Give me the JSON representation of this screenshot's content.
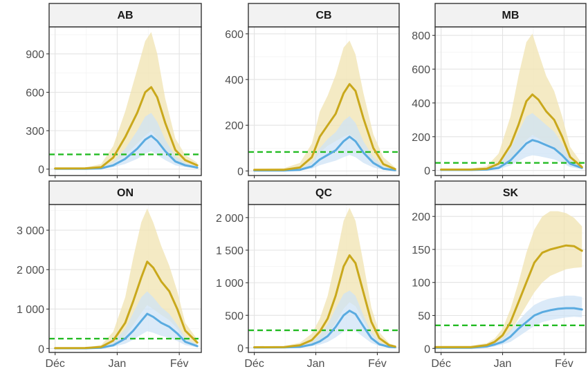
{
  "chart_data": {
    "type": "line",
    "x_ticks": [
      {
        "label": "Déc",
        "x": 5
      },
      {
        "label": "Jan",
        "x": 36
      },
      {
        "label": "Fév",
        "x": 67
      }
    ],
    "x_range": [
      2,
      78
    ],
    "grid": true,
    "legend": "none",
    "colors": {
      "upper_line": "#c9a81c",
      "upper_band": "#f0e3b0",
      "lower_line": "#5aabe0",
      "lower_band": "#cfe3f5",
      "threshold": "#22bb22"
    },
    "panels": [
      {
        "title": "AB",
        "ylim": [
          -50,
          1110
        ],
        "y_ticks": [
          {
            "label": "0",
            "v": 0
          },
          {
            "label": "300",
            "v": 300
          },
          {
            "label": "600",
            "v": 600
          },
          {
            "label": "900",
            "v": 900
          }
        ],
        "threshold": 115,
        "upper": {
          "x": [
            5,
            20,
            28,
            34,
            40,
            46,
            50,
            53,
            56,
            60,
            65,
            70,
            76
          ],
          "y": [
            5,
            6,
            15,
            90,
            250,
            440,
            600,
            640,
            560,
            360,
            150,
            70,
            30
          ]
        },
        "upper_band": {
          "x": [
            5,
            20,
            28,
            34,
            40,
            46,
            50,
            53,
            56,
            60,
            65,
            70,
            76
          ],
          "lo": [
            3,
            4,
            8,
            45,
            110,
            200,
            260,
            300,
            240,
            140,
            60,
            30,
            10
          ],
          "hi": [
            10,
            12,
            40,
            180,
            450,
            780,
            1000,
            1070,
            900,
            550,
            240,
            110,
            50
          ]
        },
        "lower": {
          "x": [
            5,
            20,
            28,
            34,
            40,
            46,
            50,
            53,
            56,
            60,
            65,
            70,
            76
          ],
          "y": [
            3,
            3,
            6,
            30,
            80,
            160,
            230,
            260,
            220,
            140,
            60,
            30,
            12
          ]
        },
        "lower_band": {
          "x": [
            5,
            20,
            28,
            34,
            40,
            46,
            50,
            53,
            56,
            60,
            65,
            70,
            76
          ],
          "lo": [
            1,
            1,
            3,
            15,
            40,
            80,
            120,
            140,
            110,
            70,
            30,
            15,
            5
          ],
          "hi": [
            6,
            6,
            12,
            60,
            160,
            300,
            410,
            440,
            370,
            230,
            100,
            50,
            20
          ]
        }
      },
      {
        "title": "CB",
        "ylim": [
          -20,
          630
        ],
        "y_ticks": [
          {
            "label": "0",
            "v": 0
          },
          {
            "label": "200",
            "v": 200
          },
          {
            "label": "400",
            "v": 400
          },
          {
            "label": "600",
            "v": 600
          }
        ],
        "threshold": 83,
        "upper": {
          "x": [
            5,
            20,
            28,
            34,
            38,
            42,
            46,
            50,
            53,
            56,
            60,
            65,
            70,
            76
          ],
          "y": [
            5,
            5,
            15,
            60,
            150,
            200,
            250,
            340,
            380,
            350,
            230,
            100,
            30,
            8
          ]
        },
        "upper_band": {
          "x": [
            5,
            20,
            28,
            34,
            38,
            42,
            46,
            50,
            53,
            56,
            60,
            65,
            70,
            76
          ],
          "lo": [
            2,
            2,
            8,
            30,
            80,
            110,
            130,
            150,
            160,
            140,
            90,
            40,
            15,
            4
          ],
          "hi": [
            10,
            12,
            35,
            120,
            260,
            330,
            420,
            540,
            570,
            510,
            340,
            160,
            60,
            15
          ]
        },
        "lower": {
          "x": [
            5,
            20,
            28,
            34,
            38,
            42,
            46,
            50,
            53,
            56,
            60,
            65,
            70,
            76
          ],
          "y": [
            2,
            2,
            5,
            20,
            50,
            70,
            90,
            130,
            150,
            130,
            80,
            35,
            10,
            3
          ]
        },
        "lower_band": {
          "x": [
            5,
            20,
            28,
            34,
            38,
            42,
            46,
            50,
            53,
            56,
            60,
            65,
            70,
            76
          ],
          "lo": [
            1,
            1,
            2,
            10,
            25,
            35,
            45,
            60,
            70,
            60,
            35,
            15,
            5,
            1
          ],
          "hi": [
            5,
            5,
            10,
            40,
            100,
            140,
            170,
            220,
            240,
            210,
            130,
            60,
            20,
            6
          ]
        }
      },
      {
        "title": "MB",
        "ylim": [
          -30,
          850
        ],
        "y_ticks": [
          {
            "label": "0",
            "v": 0
          },
          {
            "label": "200",
            "v": 200
          },
          {
            "label": "400",
            "v": 400
          },
          {
            "label": "600",
            "v": 600
          },
          {
            "label": "800",
            "v": 800
          }
        ],
        "threshold": 45,
        "upper": {
          "x": [
            5,
            20,
            28,
            34,
            40,
            44,
            48,
            51,
            54,
            58,
            62,
            66,
            70,
            76
          ],
          "y": [
            5,
            5,
            10,
            40,
            150,
            270,
            410,
            450,
            420,
            350,
            300,
            200,
            80,
            20
          ]
        },
        "upper_band": {
          "x": [
            5,
            20,
            28,
            34,
            40,
            44,
            48,
            51,
            54,
            58,
            62,
            66,
            70,
            76
          ],
          "lo": [
            2,
            2,
            5,
            20,
            70,
            120,
            180,
            210,
            190,
            160,
            140,
            90,
            40,
            10
          ],
          "hi": [
            10,
            12,
            25,
            100,
            320,
            560,
            760,
            810,
            700,
            560,
            470,
            320,
            140,
            40
          ]
        },
        "lower": {
          "x": [
            5,
            20,
            28,
            34,
            40,
            44,
            48,
            51,
            54,
            58,
            62,
            66,
            70,
            76
          ],
          "y": [
            3,
            3,
            5,
            15,
            60,
            110,
            160,
            180,
            170,
            150,
            130,
            90,
            40,
            15
          ]
        },
        "lower_band": {
          "x": [
            5,
            20,
            28,
            34,
            40,
            44,
            48,
            51,
            54,
            58,
            62,
            66,
            70,
            76
          ],
          "lo": [
            1,
            1,
            2,
            7,
            30,
            55,
            80,
            90,
            85,
            75,
            65,
            45,
            20,
            7
          ],
          "hi": [
            6,
            6,
            12,
            35,
            130,
            230,
            320,
            340,
            310,
            270,
            230,
            160,
            70,
            25
          ]
        }
      },
      {
        "title": "ON",
        "ylim": [
          -100,
          3650
        ],
        "y_ticks": [
          {
            "label": "0",
            "v": 0
          },
          {
            "label": "1 000",
            "v": 1000
          },
          {
            "label": "2 000",
            "v": 2000
          },
          {
            "label": "3 000",
            "v": 3000
          }
        ],
        "threshold": 250,
        "upper": {
          "x": [
            5,
            20,
            28,
            34,
            40,
            44,
            48,
            51,
            54,
            58,
            62,
            66,
            70,
            76
          ],
          "y": [
            10,
            12,
            40,
            200,
            650,
            1200,
            1800,
            2200,
            2050,
            1700,
            1450,
            1000,
            450,
            150
          ]
        },
        "upper_band": {
          "x": [
            5,
            20,
            28,
            34,
            40,
            44,
            48,
            51,
            54,
            58,
            62,
            66,
            70,
            76
          ],
          "lo": [
            5,
            6,
            20,
            100,
            320,
            600,
            900,
            1100,
            1000,
            850,
            720,
            500,
            220,
            70
          ],
          "hi": [
            20,
            25,
            90,
            420,
            1300,
            2300,
            3200,
            3550,
            3200,
            2600,
            2100,
            1450,
            650,
            230
          ]
        },
        "lower": {
          "x": [
            5,
            20,
            28,
            34,
            40,
            44,
            48,
            51,
            54,
            58,
            62,
            66,
            70,
            76
          ],
          "y": [
            5,
            6,
            20,
            80,
            250,
            450,
            700,
            880,
            800,
            650,
            550,
            380,
            170,
            60
          ]
        },
        "lower_band": {
          "x": [
            5,
            20,
            28,
            34,
            40,
            44,
            48,
            51,
            54,
            58,
            62,
            66,
            70,
            76
          ],
          "lo": [
            2,
            3,
            10,
            40,
            120,
            220,
            350,
            440,
            400,
            320,
            270,
            190,
            85,
            30
          ],
          "hi": [
            10,
            12,
            40,
            160,
            500,
            900,
            1300,
            1450,
            1300,
            1050,
            880,
            600,
            270,
            100
          ]
        }
      },
      {
        "title": "QC",
        "ylim": [
          -70,
          2200
        ],
        "y_ticks": [
          {
            "label": "0",
            "v": 0
          },
          {
            "label": "500",
            "v": 500
          },
          {
            "label": "1 000",
            "v": 1000
          },
          {
            "label": "1 500",
            "v": 1500
          },
          {
            "label": "2 000",
            "v": 2000
          }
        ],
        "threshold": 270,
        "upper": {
          "x": [
            5,
            20,
            28,
            34,
            38,
            42,
            46,
            50,
            53,
            56,
            60,
            64,
            68,
            73,
            76
          ],
          "y": [
            10,
            12,
            40,
            120,
            250,
            450,
            800,
            1250,
            1420,
            1300,
            850,
            400,
            150,
            40,
            20
          ]
        },
        "upper_band": {
          "x": [
            5,
            20,
            28,
            34,
            38,
            42,
            46,
            50,
            53,
            56,
            60,
            64,
            68,
            73,
            76
          ],
          "lo": [
            5,
            6,
            20,
            60,
            120,
            220,
            380,
            600,
            700,
            640,
            420,
            200,
            75,
            20,
            10
          ],
          "hi": [
            20,
            25,
            80,
            220,
            450,
            800,
            1350,
            1950,
            2150,
            1950,
            1300,
            620,
            240,
            70,
            35
          ]
        },
        "lower": {
          "x": [
            5,
            20,
            28,
            34,
            38,
            42,
            46,
            50,
            53,
            56,
            60,
            64,
            68,
            73,
            76
          ],
          "y": [
            5,
            6,
            15,
            50,
            100,
            180,
            320,
            500,
            570,
            520,
            330,
            150,
            55,
            15,
            8
          ]
        },
        "lower_band": {
          "x": [
            5,
            20,
            28,
            34,
            38,
            42,
            46,
            50,
            53,
            56,
            60,
            64,
            68,
            73,
            76
          ],
          "lo": [
            2,
            3,
            7,
            25,
            50,
            90,
            160,
            250,
            290,
            260,
            165,
            75,
            28,
            8,
            4
          ],
          "hi": [
            10,
            12,
            30,
            100,
            200,
            360,
            600,
            830,
            880,
            800,
            500,
            240,
            90,
            25,
            15
          ]
        }
      },
      {
        "title": "SK",
        "ylim": [
          -6,
          218
        ],
        "y_ticks": [
          {
            "label": "0",
            "v": 0
          },
          {
            "label": "50",
            "v": 50
          },
          {
            "label": "100",
            "v": 100
          },
          {
            "label": "150",
            "v": 150
          },
          {
            "label": "200",
            "v": 200
          }
        ],
        "threshold": 35,
        "upper": {
          "x": [
            2,
            20,
            28,
            32,
            36,
            40,
            44,
            48,
            52,
            56,
            60,
            64,
            68,
            72,
            76
          ],
          "y": [
            2,
            2,
            5,
            10,
            20,
            40,
            70,
            100,
            130,
            145,
            150,
            153,
            156,
            155,
            148
          ]
        },
        "upper_band": {
          "x": [
            2,
            20,
            28,
            32,
            36,
            40,
            44,
            48,
            52,
            56,
            60,
            64,
            68,
            72,
            76
          ],
          "lo": [
            1,
            1,
            3,
            6,
            12,
            25,
            45,
            65,
            85,
            100,
            110,
            115,
            120,
            122,
            123
          ],
          "hi": [
            4,
            4,
            8,
            15,
            30,
            60,
            100,
            145,
            180,
            200,
            208,
            208,
            205,
            198,
            185
          ]
        },
        "lower": {
          "x": [
            2,
            20,
            28,
            32,
            36,
            40,
            44,
            48,
            52,
            56,
            60,
            64,
            68,
            72,
            76
          ],
          "y": [
            1,
            1,
            3,
            6,
            10,
            18,
            30,
            40,
            50,
            55,
            58,
            60,
            61,
            61,
            59
          ]
        },
        "lower_band": {
          "x": [
            2,
            20,
            28,
            32,
            36,
            40,
            44,
            48,
            52,
            56,
            60,
            64,
            68,
            72,
            76
          ],
          "lo": [
            0,
            0,
            1,
            3,
            6,
            10,
            18,
            26,
            34,
            40,
            43,
            45,
            47,
            48,
            47
          ],
          "hi": [
            3,
            3,
            6,
            10,
            16,
            28,
            42,
            55,
            66,
            72,
            76,
            78,
            80,
            80,
            78
          ]
        }
      }
    ]
  }
}
